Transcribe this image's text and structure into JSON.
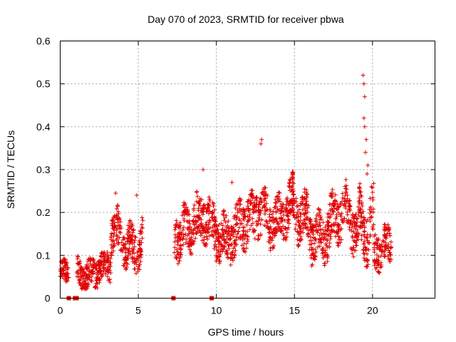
{
  "chart_data": {
    "type": "scatter",
    "title": "Day 070 of 2023, SRMTID for receiver pbwa",
    "xlabel": "GPS time / hours",
    "ylabel": "SRMTID / TECUs",
    "xlim": [
      0,
      24
    ],
    "ylim": [
      0,
      0.6
    ],
    "xticks": [
      0,
      5,
      10,
      15,
      20
    ],
    "yticks": [
      0,
      0.1,
      0.2,
      0.3,
      0.4,
      0.5,
      0.6
    ],
    "xtick_labels": [
      "0",
      "5",
      "10",
      "15",
      "20"
    ],
    "ytick_labels": [
      "0",
      "0.1",
      "0.2",
      "0.3",
      "0.4",
      "0.5",
      "0.6"
    ],
    "grid": true,
    "marker": "+",
    "color": "#e00000",
    "zero_points_x": [
      0.55,
      0.95,
      1.05,
      7.25,
      9.7
    ],
    "segments": [
      {
        "start": 0.0,
        "end": 0.55,
        "base": 0.05,
        "amp": 0.02,
        "noise": 0.025
      },
      {
        "start": 1.05,
        "end": 3.25,
        "base": 0.065,
        "amp": 0.025,
        "noise": 0.03
      },
      {
        "start": 3.25,
        "end": 5.3,
        "base": 0.14,
        "amp": 0.05,
        "noise": 0.045
      },
      {
        "start": 7.3,
        "end": 9.6,
        "base": 0.17,
        "amp": 0.04,
        "noise": 0.05
      },
      {
        "start": 9.7,
        "end": 12.5,
        "base": 0.16,
        "amp": 0.05,
        "noise": 0.05
      },
      {
        "start": 12.5,
        "end": 15.0,
        "base": 0.2,
        "amp": 0.05,
        "noise": 0.05
      },
      {
        "start": 15.0,
        "end": 19.1,
        "base": 0.17,
        "amp": 0.06,
        "noise": 0.05
      },
      {
        "start": 19.1,
        "end": 20.1,
        "base": 0.2,
        "amp": 0.08,
        "noise": 0.06
      },
      {
        "start": 20.1,
        "end": 21.2,
        "base": 0.11,
        "amp": 0.03,
        "noise": 0.04
      }
    ],
    "spikes": [
      {
        "x": 12.9,
        "y": 0.37
      },
      {
        "x": 12.85,
        "y": 0.36
      },
      {
        "x": 19.4,
        "y": 0.52
      },
      {
        "x": 19.45,
        "y": 0.5
      },
      {
        "x": 19.5,
        "y": 0.47
      },
      {
        "x": 19.45,
        "y": 0.42
      },
      {
        "x": 19.5,
        "y": 0.4
      },
      {
        "x": 19.6,
        "y": 0.37
      },
      {
        "x": 19.55,
        "y": 0.34
      },
      {
        "x": 19.7,
        "y": 0.31
      },
      {
        "x": 19.65,
        "y": 0.29
      },
      {
        "x": 4.9,
        "y": 0.24
      },
      {
        "x": 3.55,
        "y": 0.245
      },
      {
        "x": 11.0,
        "y": 0.27
      },
      {
        "x": 9.15,
        "y": 0.3
      }
    ]
  }
}
